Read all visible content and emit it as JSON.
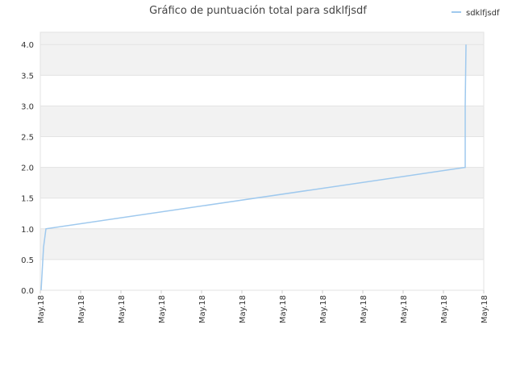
{
  "chart_data": {
    "type": "line",
    "title": "Gráfico de puntuación total para sdklfjsdf",
    "x": [
      0.02,
      0.08,
      0.14,
      10.54,
      10.54,
      10.56
    ],
    "series": [
      {
        "name": "sdklfjsdf",
        "color": "#9fc9ee",
        "values": [
          0,
          0.7,
          1,
          2,
          3,
          4
        ]
      }
    ],
    "xlim": [
      0,
      11
    ],
    "xticks": [
      {
        "value": 0,
        "label": "May.18"
      },
      {
        "value": 1,
        "label": "May.18"
      },
      {
        "value": 2,
        "label": "May.18"
      },
      {
        "value": 3,
        "label": "May.18"
      },
      {
        "value": 4,
        "label": "May.18"
      },
      {
        "value": 5,
        "label": "May.18"
      },
      {
        "value": 6,
        "label": "May.18"
      },
      {
        "value": 7,
        "label": "May.18"
      },
      {
        "value": 8,
        "label": "May.18"
      },
      {
        "value": 9,
        "label": "May.18"
      },
      {
        "value": 10,
        "label": "May.18"
      },
      {
        "value": 11,
        "label": "May.18"
      }
    ],
    "ylim": [
      0,
      4.2
    ],
    "yticks": [
      {
        "value": 0,
        "label": "0.0"
      },
      {
        "value": 0.5,
        "label": "0.5"
      },
      {
        "value": 1,
        "label": "1.0"
      },
      {
        "value": 1.5,
        "label": "1.5"
      },
      {
        "value": 2,
        "label": "2.0"
      },
      {
        "value": 2.5,
        "label": "2.5"
      },
      {
        "value": 3,
        "label": "3.0"
      },
      {
        "value": 3.5,
        "label": "3.5"
      },
      {
        "value": 4,
        "label": "4.0"
      }
    ],
    "grid": true,
    "legend": "top-right"
  }
}
